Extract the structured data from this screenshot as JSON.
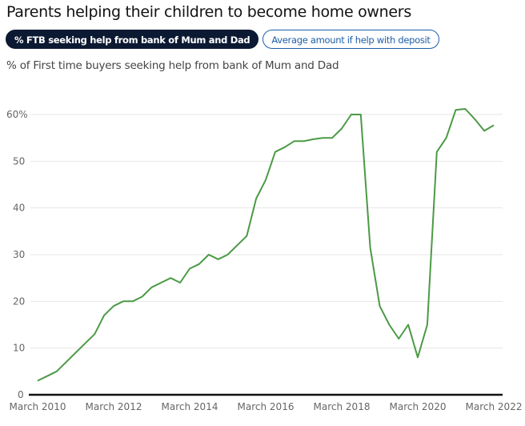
{
  "title": "Parents helping their children to become home owners",
  "tabs": [
    {
      "label": "% FTB seeking help from bank of Mum and Dad",
      "active": true
    },
    {
      "label": "Average amount if help with deposit",
      "active": false
    }
  ],
  "subtitle": "% of First time buyers seeking help from bank of Mum and Dad",
  "colors": {
    "line": "#4b9a45",
    "active_tab": "#0c1932",
    "inactive_tab": "#1d5ea8"
  },
  "chart_data": {
    "type": "line",
    "title": "% of First time buyers seeking help from bank of Mum and Dad",
    "x_start": "March 2010",
    "x_frequency": "quarterly",
    "x_tick_labels": [
      "March 2010",
      "March 2012",
      "March 2014",
      "March 2016",
      "March 2018",
      "March 2020",
      "March 2022"
    ],
    "y_tick_labels": [
      "0",
      "10",
      "20",
      "30",
      "40",
      "50",
      "60%"
    ],
    "y_ticks": [
      0,
      10,
      20,
      30,
      40,
      50,
      60
    ],
    "ylim": [
      0,
      60
    ],
    "grid": true,
    "values": [
      3,
      4,
      5,
      7,
      9,
      11,
      13,
      17,
      19,
      20,
      20,
      21,
      23,
      24,
      25,
      24,
      27,
      28,
      30,
      29,
      30,
      32,
      34,
      42,
      46,
      52,
      53,
      54.3,
      54.3,
      54.7,
      55,
      55,
      57,
      60,
      60,
      31.5,
      19,
      15,
      12,
      15,
      8,
      15,
      52,
      55,
      61,
      61.2,
      59,
      56.5,
      57.7
    ]
  }
}
